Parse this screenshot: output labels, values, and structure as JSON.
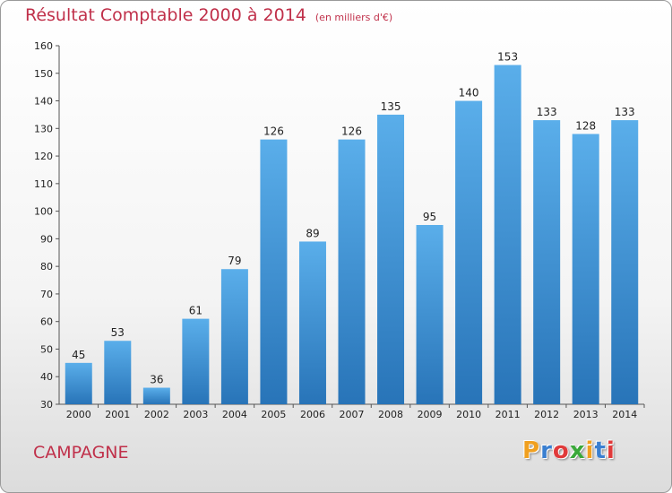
{
  "title": "Résultat Comptable 2000 à 2014",
  "unit": "(en milliers d'€)",
  "place": "CAMPAGNE",
  "logo": [
    "P",
    "r",
    "o",
    "x",
    "i",
    "t",
    "i"
  ],
  "colors": {
    "title": "#c0304a",
    "bar_top": "#5aaeea",
    "bar_bottom": "#2874b8",
    "logo": [
      "#f0a020",
      "#3a7fd0",
      "#e03a3a",
      "#3aa83a",
      "#f0a020",
      "#3a7fd0",
      "#e03a3a"
    ]
  },
  "chart_data": {
    "type": "bar",
    "categories": [
      "2000",
      "2001",
      "2002",
      "2003",
      "2004",
      "2005",
      "2006",
      "2007",
      "2008",
      "2009",
      "2010",
      "2011",
      "2012",
      "2013",
      "2014"
    ],
    "values": [
      45,
      53,
      36,
      61,
      79,
      126,
      89,
      126,
      135,
      95,
      140,
      153,
      133,
      128,
      133
    ],
    "title": "Résultat Comptable 2000 à 2014",
    "ylim": [
      30,
      160
    ],
    "yticks": [
      30,
      40,
      50,
      60,
      70,
      80,
      90,
      100,
      110,
      120,
      130,
      140,
      150,
      160
    ],
    "grid": false,
    "legend": "none"
  }
}
